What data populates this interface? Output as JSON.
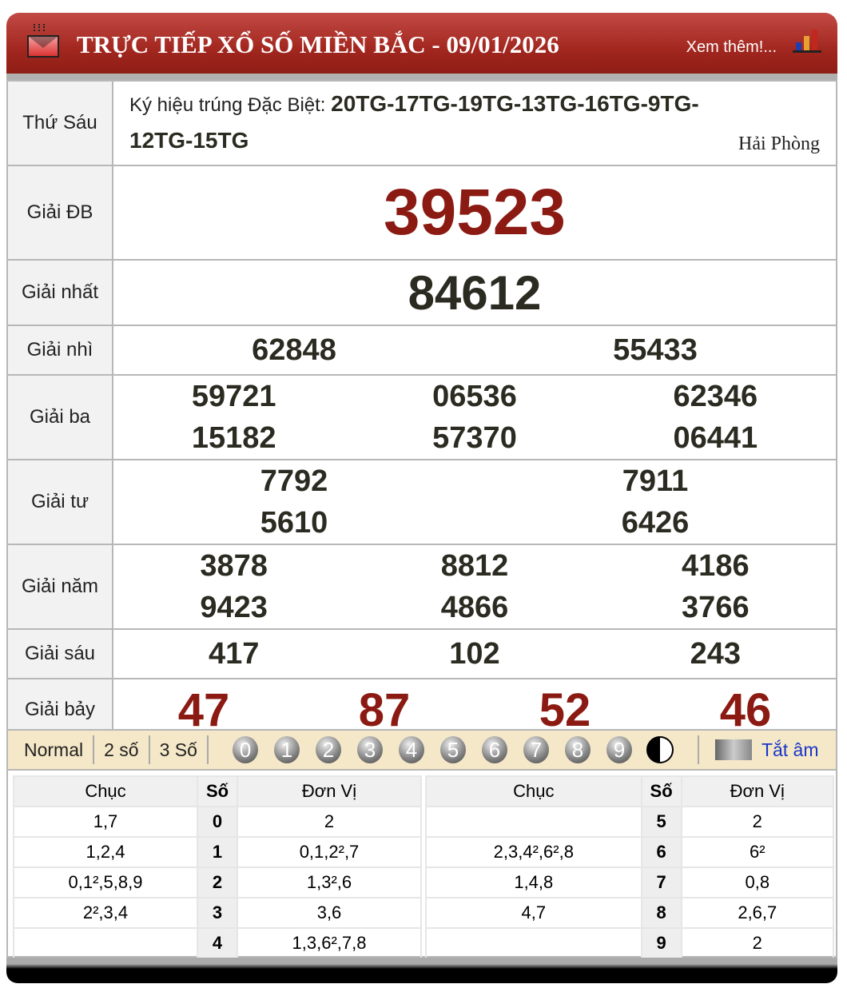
{
  "header": {
    "title": "TRỰC TIẾP XỔ SỐ MIỀN BẮC - 09/01/2026",
    "more": "Xem thêm!...",
    "colors": {
      "header": "#a2271f",
      "special": "#8b1a12"
    }
  },
  "info": {
    "day": "Thứ Sáu",
    "symbol_label": "Ký hiệu trúng Đặc Biệt: ",
    "symbol_value": "20TG-17TG-19TG-13TG-16TG-9TG-12TG-15TG",
    "location": "Hải Phòng"
  },
  "prizes": {
    "db": {
      "label": "Giải ĐB",
      "values": [
        "39523"
      ]
    },
    "nhat": {
      "label": "Giải nhất",
      "values": [
        "84612"
      ]
    },
    "nhi": {
      "label": "Giải nhì",
      "values": [
        "62848",
        "55433"
      ]
    },
    "ba": {
      "label": "Giải ba",
      "values": [
        "59721",
        "06536",
        "62346",
        "15182",
        "57370",
        "06441"
      ]
    },
    "tu": {
      "label": "Giải tư",
      "values": [
        "7792",
        "7911",
        "5610",
        "6426"
      ]
    },
    "nam": {
      "label": "Giải năm",
      "values": [
        "3878",
        "8812",
        "4186",
        "9423",
        "4866",
        "3766"
      ]
    },
    "sau": {
      "label": "Giải sáu",
      "values": [
        "417",
        "102",
        "243"
      ]
    },
    "bay": {
      "label": "Giải bảy",
      "values": [
        "47",
        "87",
        "52",
        "46"
      ]
    }
  },
  "toolbar": {
    "tabs": [
      "Normal",
      "2 số",
      "3 Số"
    ],
    "balls": [
      "0",
      "1",
      "2",
      "3",
      "4",
      "5",
      "6",
      "7",
      "8",
      "9"
    ],
    "sound": "Tắt âm"
  },
  "loto": {
    "headers": [
      "Chục",
      "Số",
      "Đơn Vị"
    ],
    "left": [
      [
        "1,7",
        "0",
        "2"
      ],
      [
        "1,2,4",
        "1",
        "0,1,2²,7"
      ],
      [
        "0,1²,5,8,9",
        "2",
        "1,3²,6"
      ],
      [
        "2²,3,4",
        "3",
        "3,6"
      ],
      [
        "",
        "4",
        "1,3,6²,7,8"
      ]
    ],
    "right": [
      [
        "",
        "5",
        "2"
      ],
      [
        "2,3,4²,6²,8",
        "6",
        "6²"
      ],
      [
        "1,4,8",
        "7",
        "0,8"
      ],
      [
        "4,7",
        "8",
        "2,6,7"
      ],
      [
        "",
        "9",
        "2"
      ]
    ]
  }
}
